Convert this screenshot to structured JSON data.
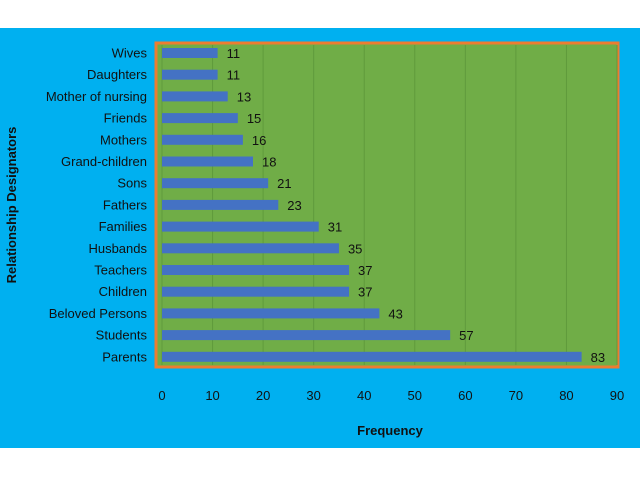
{
  "colors": {
    "background": "#00b0f0",
    "plot_area": "#70ad47",
    "plot_border": "#ed7d31",
    "bar": "#4472c4",
    "gridline": "#5f9a3c"
  },
  "chart_data": {
    "type": "bar",
    "orientation": "horizontal",
    "categories": [
      "Wives",
      "Daughters",
      "Mother of nursing",
      "Friends",
      "Mothers",
      "Grand-children",
      "Sons",
      "Fathers",
      "Families",
      "Husbands",
      "Teachers",
      "Children",
      "Beloved Persons",
      "Students",
      "Parents"
    ],
    "values": [
      11,
      11,
      13,
      15,
      16,
      18,
      21,
      23,
      31,
      35,
      37,
      37,
      43,
      57,
      83
    ],
    "xlabel": "Frequency",
    "ylabel": "Relationship Designators",
    "xlim": [
      0,
      90
    ],
    "xticks": [
      0,
      10,
      20,
      30,
      40,
      50,
      60,
      70,
      80,
      90
    ],
    "grid": true,
    "legend": "none",
    "data_labels": true
  }
}
